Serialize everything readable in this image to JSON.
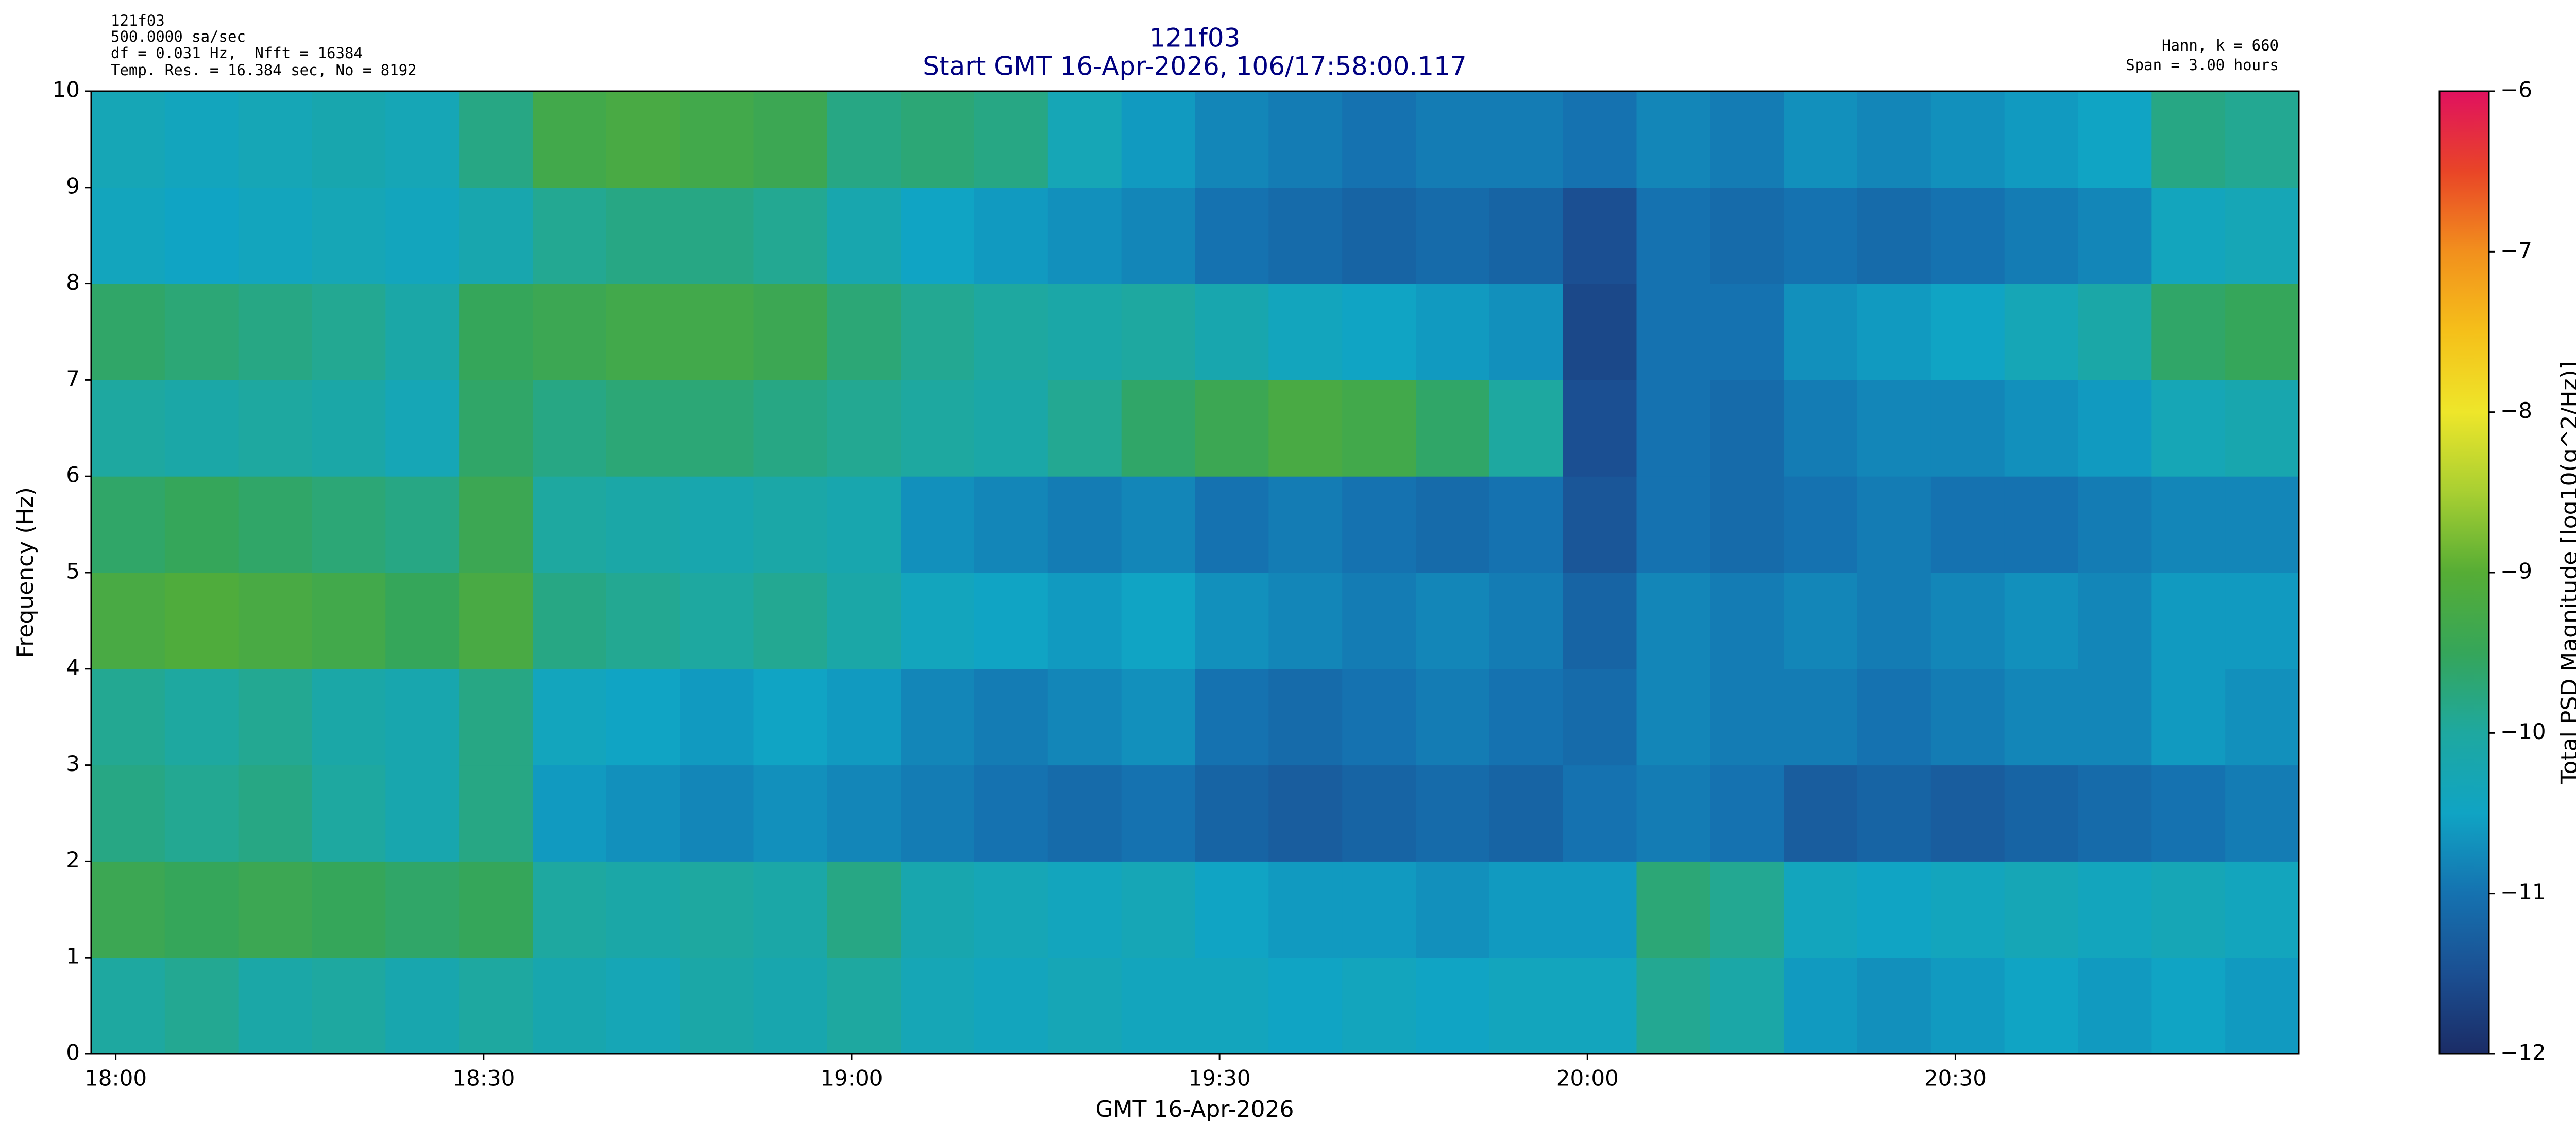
{
  "chart_data": {
    "type": "heatmap",
    "header_left": [
      "121f03",
      "500.0000 sa/sec",
      "df = 0.031 Hz,  Nfft = 16384",
      "Temp. Res. = 16.384 sec, No = 8192"
    ],
    "header_right": [
      "Hann, k = 660",
      "Span = 3.00 hours"
    ],
    "title": "121f03",
    "subtitle": "Start GMT 16-Apr-2026, 106/17:58:00.117",
    "xlabel": "GMT 16-Apr-2026",
    "ylabel": "Frequency (Hz)",
    "colorbar_label": "Total PSD Magnitude [log10(g^2/Hz)]",
    "xlim": [
      "17:58",
      "20:58"
    ],
    "xticks": [
      "18:00",
      "18:30",
      "19:00",
      "19:30",
      "20:00",
      "20:30"
    ],
    "ylim": [
      0,
      10
    ],
    "yticks": [
      0,
      1,
      2,
      3,
      4,
      5,
      6,
      7,
      8,
      9,
      10
    ],
    "clim": [
      -12,
      -6
    ],
    "cticks": [
      {
        "value": -12,
        "label": "−12"
      },
      {
        "value": -11,
        "label": "−11"
      },
      {
        "value": -10,
        "label": "−10"
      },
      {
        "value": -9,
        "label": "−9"
      },
      {
        "value": -8,
        "label": "−8"
      },
      {
        "value": -7,
        "label": "−7"
      },
      {
        "value": -6,
        "label": "−6"
      }
    ],
    "colormap": [
      "#1b2c66",
      "#1b4f92",
      "#1572b0",
      "#10a4c4",
      "#1ea8a0",
      "#35a65a",
      "#56ad35",
      "#a8cf32",
      "#eee62a",
      "#f5c01a",
      "#f2901d",
      "#e94527",
      "#e0115f"
    ],
    "x": [
      "17:58",
      "18:04",
      "18:10",
      "18:16",
      "18:22",
      "18:28",
      "18:34",
      "18:40",
      "18:46",
      "18:52",
      "18:58",
      "19:04",
      "19:10",
      "19:16",
      "19:22",
      "19:28",
      "19:34",
      "19:40",
      "19:46",
      "19:52",
      "19:58",
      "20:04",
      "20:10",
      "20:16",
      "20:22",
      "20:28",
      "20:34",
      "20:40",
      "20:46",
      "20:52"
    ],
    "y": [
      0,
      1,
      2,
      3,
      4,
      5,
      6,
      7,
      8,
      9
    ],
    "values": [
      [
        -10.0,
        -9.9,
        -10.1,
        -10.0,
        -10.2,
        -10.0,
        -10.2,
        -10.3,
        -10.1,
        -10.2,
        -10.0,
        -10.3,
        -10.4,
        -10.3,
        -10.4,
        -10.4,
        -10.5,
        -10.4,
        -10.5,
        -10.4,
        -10.4,
        -9.9,
        -10.1,
        -10.6,
        -10.7,
        -10.6,
        -10.5,
        -10.6,
        -10.5,
        -10.6
      ],
      [
        -9.4,
        -9.5,
        -9.4,
        -9.5,
        -9.6,
        -9.5,
        -10.0,
        -10.1,
        -10.0,
        -10.1,
        -9.8,
        -10.2,
        -10.3,
        -10.4,
        -10.3,
        -10.5,
        -10.6,
        -10.6,
        -10.7,
        -10.6,
        -10.6,
        -9.7,
        -9.9,
        -10.4,
        -10.5,
        -10.4,
        -10.3,
        -10.4,
        -10.3,
        -10.4
      ],
      [
        -9.8,
        -9.9,
        -9.8,
        -10.0,
        -10.2,
        -9.8,
        -10.6,
        -10.7,
        -10.8,
        -10.7,
        -10.8,
        -10.9,
        -11.0,
        -11.1,
        -11.0,
        -11.2,
        -11.3,
        -11.2,
        -11.1,
        -11.2,
        -11.0,
        -10.9,
        -11.0,
        -11.3,
        -11.2,
        -11.3,
        -11.2,
        -11.1,
        -11.0,
        -10.9
      ],
      [
        -9.9,
        -10.0,
        -9.9,
        -10.1,
        -10.2,
        -9.8,
        -10.4,
        -10.5,
        -10.6,
        -10.5,
        -10.6,
        -10.8,
        -10.9,
        -10.8,
        -10.7,
        -11.0,
        -11.1,
        -11.0,
        -10.9,
        -11.0,
        -11.1,
        -10.8,
        -10.9,
        -10.9,
        -11.0,
        -10.9,
        -10.8,
        -10.8,
        -10.6,
        -10.7
      ],
      [
        -9.2,
        -9.1,
        -9.2,
        -9.3,
        -9.5,
        -9.2,
        -9.8,
        -9.9,
        -10.0,
        -9.9,
        -10.1,
        -10.4,
        -10.5,
        -10.6,
        -10.5,
        -10.7,
        -10.8,
        -10.9,
        -10.8,
        -10.9,
        -11.2,
        -10.8,
        -10.9,
        -10.8,
        -10.9,
        -10.8,
        -10.7,
        -10.8,
        -10.6,
        -10.6
      ],
      [
        -9.6,
        -9.5,
        -9.6,
        -9.7,
        -9.8,
        -9.4,
        -10.0,
        -10.1,
        -10.2,
        -10.1,
        -10.2,
        -10.7,
        -10.8,
        -10.9,
        -10.8,
        -11.0,
        -10.9,
        -11.0,
        -11.1,
        -11.0,
        -11.4,
        -11.0,
        -11.1,
        -11.0,
        -10.9,
        -11.0,
        -11.0,
        -10.9,
        -10.8,
        -10.8
      ],
      [
        -10.0,
        -10.1,
        -10.0,
        -10.1,
        -10.3,
        -9.6,
        -9.8,
        -9.7,
        -9.7,
        -9.8,
        -9.9,
        -10.0,
        -10.1,
        -9.9,
        -9.6,
        -9.4,
        -9.2,
        -9.3,
        -9.6,
        -10.0,
        -11.5,
        -11.0,
        -11.1,
        -10.9,
        -10.8,
        -10.8,
        -10.7,
        -10.6,
        -10.3,
        -10.2
      ],
      [
        -9.6,
        -9.7,
        -9.8,
        -9.9,
        -10.1,
        -9.5,
        -9.4,
        -9.3,
        -9.3,
        -9.4,
        -9.7,
        -9.9,
        -10.0,
        -10.1,
        -10.0,
        -10.2,
        -10.4,
        -10.5,
        -10.6,
        -10.7,
        -11.6,
        -11.0,
        -11.0,
        -10.7,
        -10.6,
        -10.5,
        -10.3,
        -10.1,
        -9.6,
        -9.5
      ],
      [
        -10.4,
        -10.5,
        -10.4,
        -10.3,
        -10.4,
        -10.2,
        -9.9,
        -9.8,
        -9.8,
        -9.9,
        -10.2,
        -10.5,
        -10.6,
        -10.7,
        -10.8,
        -11.0,
        -11.1,
        -11.2,
        -11.1,
        -11.2,
        -11.5,
        -11.0,
        -11.1,
        -11.0,
        -11.1,
        -11.0,
        -10.9,
        -10.8,
        -10.4,
        -10.3
      ],
      [
        -10.3,
        -10.4,
        -10.3,
        -10.2,
        -10.3,
        -9.8,
        -9.3,
        -9.2,
        -9.3,
        -9.4,
        -9.8,
        -9.7,
        -9.8,
        -10.3,
        -10.6,
        -10.8,
        -10.9,
        -11.0,
        -10.9,
        -10.9,
        -11.0,
        -10.8,
        -10.9,
        -10.7,
        -10.8,
        -10.7,
        -10.6,
        -10.5,
        -9.8,
        -9.9
      ]
    ]
  }
}
